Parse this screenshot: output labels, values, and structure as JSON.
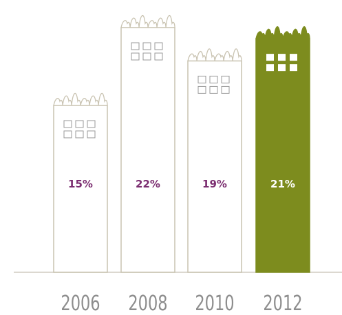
{
  "chart_data": {
    "type": "building",
    "categories": [
      "2006",
      "2008",
      "2010",
      "2012"
    ],
    "values": [
      15,
      22,
      19,
      21
    ],
    "value_labels": [
      "15%",
      "22%",
      "19%",
      "21%"
    ],
    "outline_color": "#c9c3b1",
    "fill_colors": [
      "#ffffff",
      "#ffffff",
      "#ffffff",
      "#7d8c1e"
    ],
    "label_colors": [
      "#7b2d70",
      "#7b2d70",
      "#7b2d70",
      "#ffffff"
    ]
  }
}
